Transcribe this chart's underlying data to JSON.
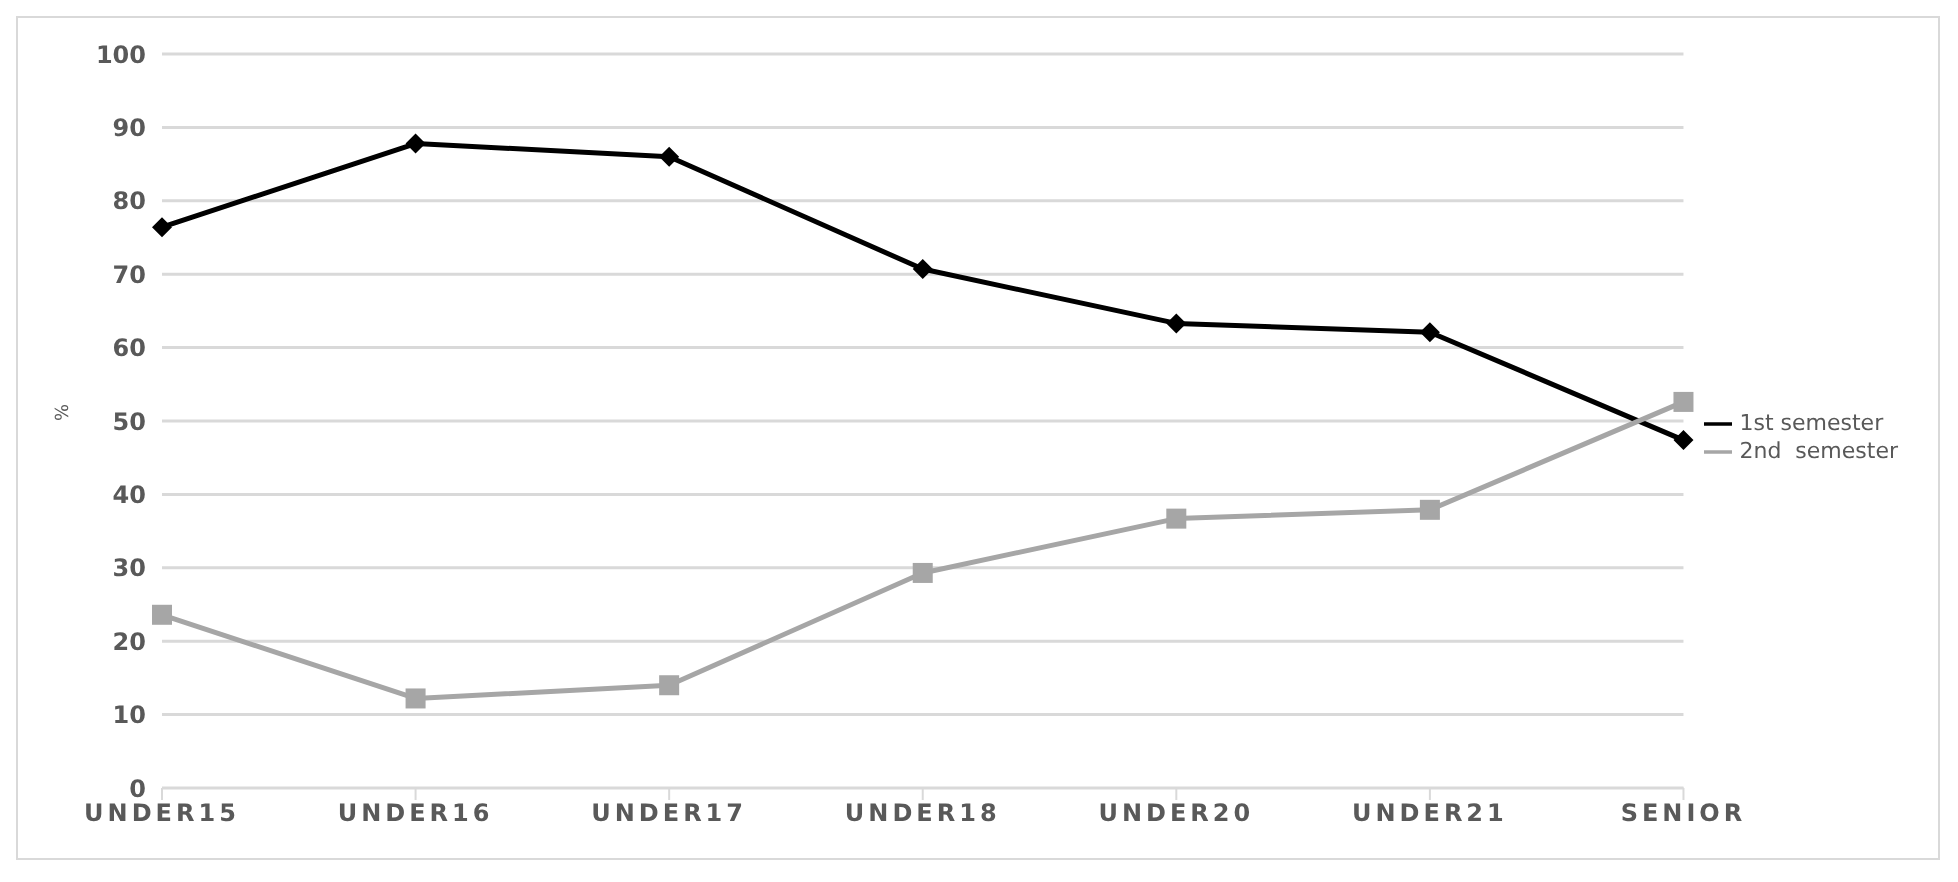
{
  "chart_data": {
    "type": "line",
    "ylabel": "%",
    "categories": [
      "UNDER15",
      "UNDER16",
      "UNDER17",
      "UNDER18",
      "UNDER20",
      "UNDER21",
      "SENIOR"
    ],
    "series": [
      {
        "name": "1st semester",
        "color": "#000000",
        "marker": "diamond",
        "values": [
          76.4,
          87.8,
          86.0,
          70.7,
          63.3,
          62.1,
          47.4
        ]
      },
      {
        "name": "2nd  semester",
        "color": "#a6a6a6",
        "marker": "square",
        "values": [
          23.6,
          12.2,
          14.0,
          29.3,
          36.7,
          37.9,
          52.6
        ]
      }
    ],
    "ylim": [
      0,
      100
    ],
    "yticks": [
      0,
      10,
      20,
      30,
      40,
      50,
      60,
      70,
      80,
      90,
      100
    ],
    "grid": "y",
    "legend": "right"
  }
}
